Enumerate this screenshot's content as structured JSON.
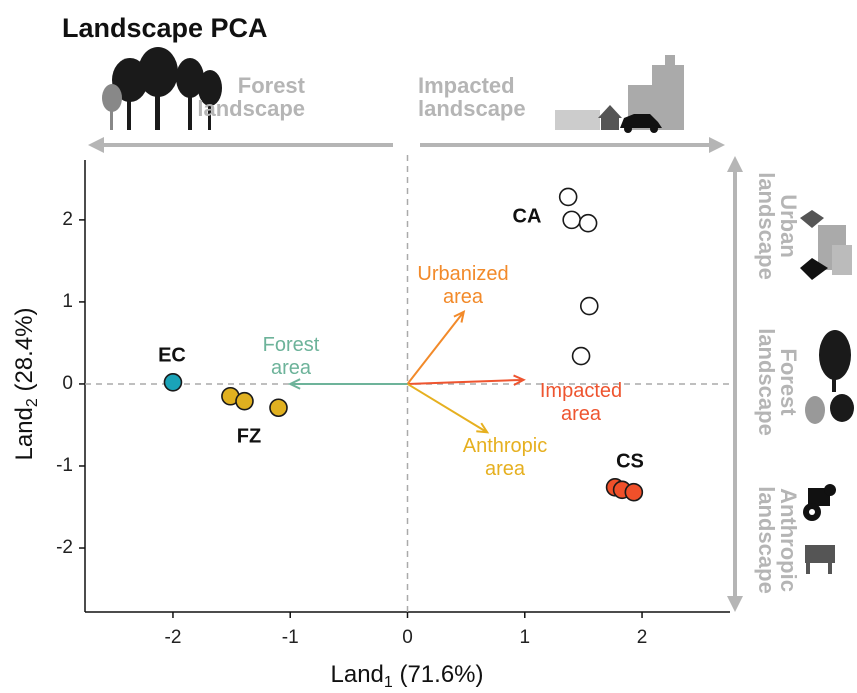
{
  "chart_data": {
    "type": "scatter",
    "title": "Landscape PCA",
    "xlabel": {
      "main": "Land",
      "subscript": "1",
      "rest": " (71.6%)"
    },
    "ylabel": {
      "main": "Land",
      "subscript": "2",
      "rest": " (28.4%)"
    },
    "xlim": [
      -2.75,
      2.75
    ],
    "ylim": [
      -2.78,
      2.73
    ],
    "xticks": [
      -2,
      -1,
      0,
      1,
      2
    ],
    "yticks": [
      -2,
      -1,
      0,
      1,
      2
    ],
    "series": [
      {
        "name": "CA",
        "color": "#ffffff",
        "x": [
          1.37,
          1.4,
          1.54,
          1.55,
          1.48
        ],
        "values": [
          2.28,
          2.0,
          1.96,
          0.95,
          0.34
        ]
      },
      {
        "name": "CS",
        "color": "#f0502a",
        "x": [
          1.77,
          1.83,
          1.93
        ],
        "values": [
          -1.26,
          -1.29,
          -1.32
        ]
      },
      {
        "name": "EC",
        "color": "#1aa3b8",
        "x": [
          -2.0
        ],
        "values": [
          0.02
        ]
      },
      {
        "name": "FZ",
        "color": "#e0b020",
        "x": [
          -1.51,
          -1.39,
          -1.1
        ],
        "values": [
          -0.15,
          -0.21,
          -0.29
        ]
      }
    ],
    "loadings": [
      {
        "label": [
          "Urbanized",
          "area"
        ],
        "color": "#f28a2a",
        "x": 0.48,
        "y": 0.88
      },
      {
        "label": [
          "Impacted",
          "area"
        ],
        "color": "#ee5530",
        "x": 0.99,
        "y": 0.05
      },
      {
        "label": [
          "Anthropic",
          "area"
        ],
        "color": "#e6b020",
        "x": 0.68,
        "y": -0.59
      },
      {
        "label": [
          "Forest",
          "area"
        ],
        "color": "#6db39a",
        "x": -1.0,
        "y": 0.0
      }
    ],
    "top_annotations": [
      [
        "Forest",
        "landscape"
      ],
      [
        "Impacted",
        "landscape"
      ]
    ],
    "side_annotations": [
      [
        "Urban",
        "landscape"
      ],
      [
        "Forest",
        "landscape"
      ],
      [
        "Anthropic",
        "landscape"
      ]
    ]
  }
}
